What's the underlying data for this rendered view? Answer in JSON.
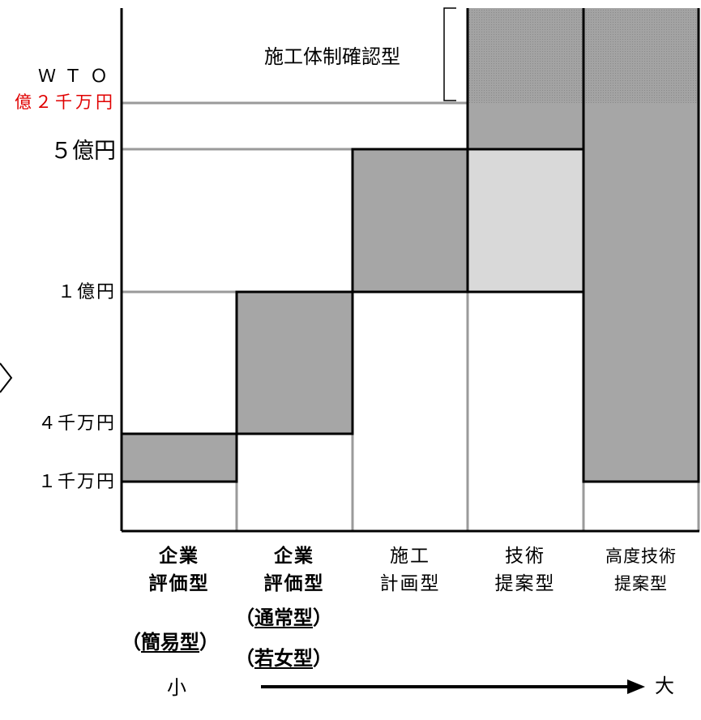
{
  "title": "",
  "diagram": {
    "bracket_label": "施工体制確認型",
    "y_labels": {
      "wto_1": "ＷＴＯ",
      "wto_2": "億２千万円",
      "oku5": "５億円",
      "oku1": "１億円",
      "man4000": "４千万円",
      "man1000": "１千万円"
    },
    "categories": [
      {
        "line1": "企業",
        "line2": "評価型",
        "bold": true
      },
      {
        "line1": "企業",
        "line2": "評価型",
        "bold": true
      },
      {
        "line1": "施工",
        "line2": "計画型",
        "bold": false
      },
      {
        "line1": "技術",
        "line2": "提案型",
        "bold": false
      },
      {
        "line1": "高度技術",
        "line2": "提案型",
        "bold": false
      }
    ],
    "subtypes": {
      "kani_open": "（",
      "kani": "簡易型",
      "kani_close": "）",
      "tsujo_open": "（",
      "tsujo": "通常型",
      "tsujo_close": "）",
      "jakujo_open": "（",
      "jakujo": "若女型",
      "jakujo_close": "）"
    },
    "scale": {
      "small": "小",
      "large": "大"
    },
    "colors": {
      "dark_fill": "#a6a6a6",
      "light_fill": "#d9d9d9",
      "hatched": "#999999",
      "red_text": "#e00000"
    }
  }
}
